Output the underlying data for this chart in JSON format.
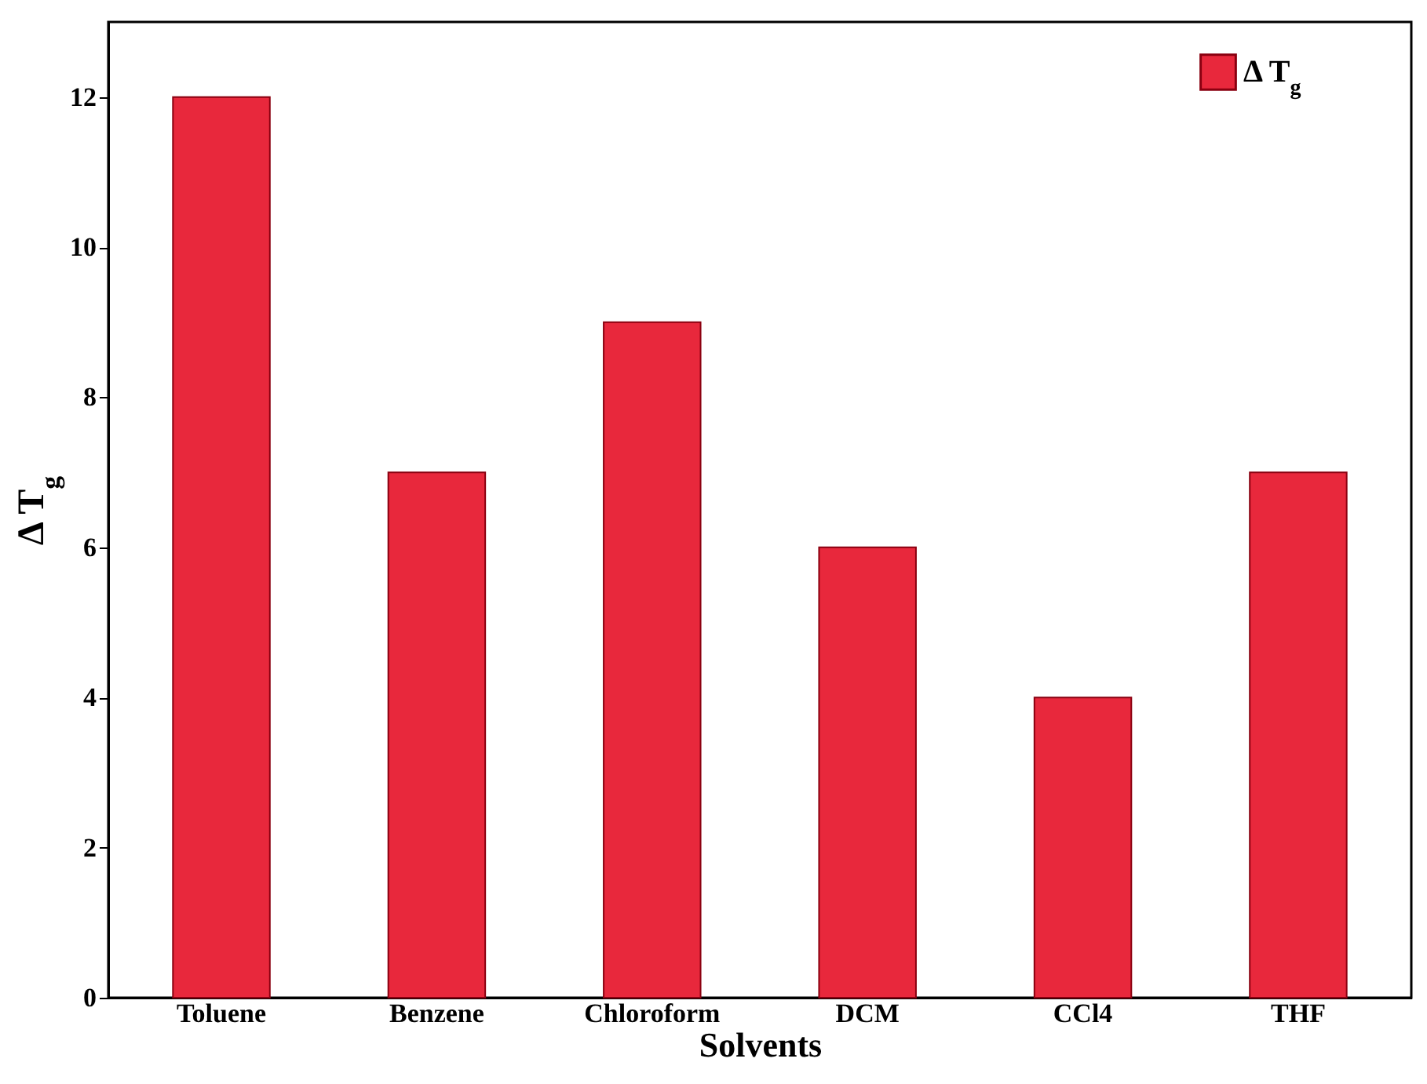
{
  "chart_data": {
    "type": "bar",
    "xlabel": "Solvents",
    "ylabel": "Δ T$_{g}$",
    "categories": [
      "Toluene",
      "Benzene",
      "Chloroform",
      "DCM",
      "CCl4",
      "THF"
    ],
    "series": [
      {
        "name": "Δ T$_{g}$",
        "color": "#e8283c",
        "values": [
          12,
          7,
          9,
          6,
          4,
          7
        ]
      }
    ],
    "ylim": [
      0,
      13
    ],
    "yticks": [
      0,
      2,
      4,
      6,
      8,
      10,
      12
    ],
    "grid": false,
    "legend": "top right"
  }
}
